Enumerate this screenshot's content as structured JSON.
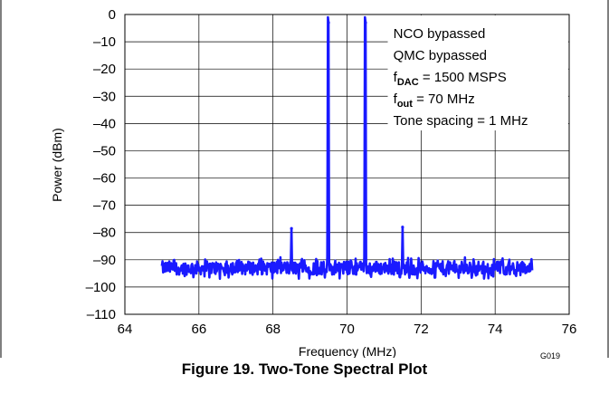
{
  "chart_data": {
    "type": "line",
    "title": "",
    "xlabel": "Frequency (MHz)",
    "ylabel": "Power (dBm)",
    "xlim": [
      64,
      76
    ],
    "ylim": [
      -110,
      0
    ],
    "xticks": [
      "64",
      "66",
      "68",
      "70",
      "72",
      "74",
      "76"
    ],
    "yticks": [
      "0",
      "–10",
      "–20",
      "–30",
      "–40",
      "–50",
      "–60",
      "–70",
      "–80",
      "–90",
      "–100",
      "–110"
    ],
    "grid": true,
    "series_color": "#1a1aff",
    "noise_floor_dbm": -93,
    "spectrum_range_mhz": [
      65,
      75
    ],
    "peaks": [
      {
        "x": 68.5,
        "y": -78.5
      },
      {
        "x": 69.5,
        "y": -3
      },
      {
        "x": 70.5,
        "y": -3
      },
      {
        "x": 71.5,
        "y": -78
      }
    ],
    "annotations": [
      {
        "text": "NCO bypassed"
      },
      {
        "text": "QMC bypassed"
      },
      {
        "main": "f",
        "sub": "DAC",
        "rest": " = 1500 MSPS"
      },
      {
        "main": "f",
        "sub": "out",
        "rest": " = 70 MHz"
      },
      {
        "text": "Tone spacing  = 1 MHz"
      }
    ]
  },
  "figure": {
    "code": "G019",
    "caption": "Figure 19. Two-Tone Spectral Plot"
  }
}
